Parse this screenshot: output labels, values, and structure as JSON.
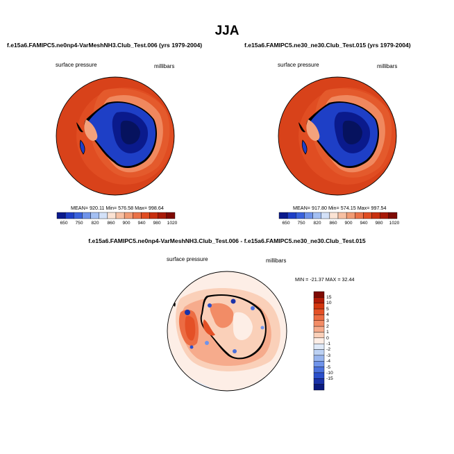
{
  "page_title": "JJA",
  "panels": [
    {
      "title": "f.e15a6.FAMIPC5.ne0np4-VarMeshNH3.Club_Test.006 (yrs 1979-2004)",
      "left_label": "surface pressure",
      "right_label": "millibars",
      "stats": "MEAN= 920.11  Min= 576.58  Max= 998.64"
    },
    {
      "title": "f.e15a6.FAMIPC5.ne30_ne30.Club_Test.015 (yrs 1979-2004)",
      "left_label": "surface pressure",
      "right_label": "millibars",
      "stats": "MEAN= 917.80  Min= 574.15  Max= 997.54"
    },
    {
      "title": "f.e15a6.FAMIPC5.ne0np4-VarMeshNH3.Club_Test.006 - f.e15a6.FAMIPC5.ne30_ne30.Club_Test.015",
      "left_label": "surface pressure",
      "right_label": "millibars",
      "stats": "MIN = -21.37 MAX =  32.44"
    }
  ],
  "colorbar_abs": {
    "labels": [
      "650",
      "750",
      "820",
      "860",
      "900",
      "940",
      "980",
      "1020"
    ],
    "colors": [
      "#0a1a8c",
      "#1e3fc6",
      "#3a62dc",
      "#6f93ea",
      "#a3bff3",
      "#d3e1f8",
      "#fbe3d4",
      "#f7c0a3",
      "#f19b74",
      "#ea7248",
      "#e04d22",
      "#c8300f",
      "#a81a08",
      "#7e0a03"
    ]
  },
  "colorbar_diff": {
    "labels": [
      "15",
      "10",
      "5",
      "4",
      "3",
      "2",
      "1",
      "0",
      "-1",
      "-2",
      "-3",
      "-4",
      "-5",
      "-10",
      "-15"
    ],
    "colors": [
      "#7e0a03",
      "#b01b08",
      "#d3360f",
      "#e45026",
      "#ec6c43",
      "#f28c66",
      "#f6ab8c",
      "#fad0b9",
      "#fdeee6",
      "#dfe9f8",
      "#bcd1f3",
      "#98b5ee",
      "#6f93ea",
      "#4b71dd",
      "#2b4fcb",
      "#1a32a8",
      "#0a1a7e"
    ]
  }
}
